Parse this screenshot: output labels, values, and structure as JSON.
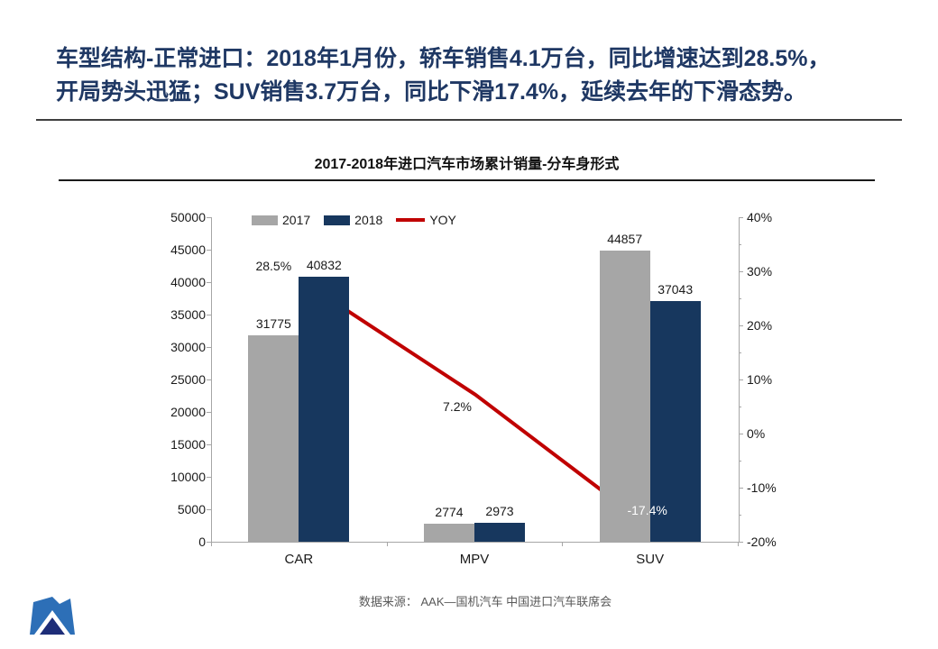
{
  "slide": {
    "headline_line1": "车型结构-正常进口：2018年1月份，轿车销售4.1万台，同比增速达到28.5%，",
    "headline_line2": "开局势头迅猛；SUV销售3.7万台，同比下滑17.4%，延续去年的下滑态势。",
    "source_note": "数据来源： AAK—国机汽车 中国进口汽车联席会",
    "logo_name": "mountain-logo"
  },
  "chart_data": {
    "type": "bar",
    "combo": "bar+line",
    "title": "2017-2018年进口汽车市场累计销量-分车身形式",
    "categories": [
      "CAR",
      "MPV",
      "SUV"
    ],
    "series": [
      {
        "name": "2017",
        "type": "bar",
        "axis": "left",
        "color": "#a6a6a6",
        "values": [
          31775,
          2774,
          44857
        ]
      },
      {
        "name": "2018",
        "type": "bar",
        "axis": "left",
        "color": "#17375e",
        "values": [
          40832,
          2973,
          37043
        ]
      },
      {
        "name": "YOY",
        "type": "line",
        "axis": "right",
        "color": "#c00000",
        "values": [
          28.5,
          7.2,
          -17.4
        ],
        "labels": [
          "28.5%",
          "7.2%",
          "-17.4%"
        ]
      }
    ],
    "left_axis": {
      "min": 0,
      "max": 50000,
      "step": 5000,
      "format": "number"
    },
    "right_axis": {
      "min": -20,
      "max": 40,
      "step": 10,
      "format": "percent"
    },
    "legend": {
      "position": "top",
      "entries": [
        "2017",
        "2018",
        "YOY"
      ]
    },
    "grid": false
  },
  "colors": {
    "headline": "#1f3864",
    "bar_2017": "#a6a6a6",
    "bar_2018": "#17375e",
    "yoy_line": "#c00000",
    "axis_line": "#a6a6a6",
    "source_text": "#595959",
    "logo_blue": "#2d6fb7",
    "logo_navy": "#1e2d78"
  }
}
